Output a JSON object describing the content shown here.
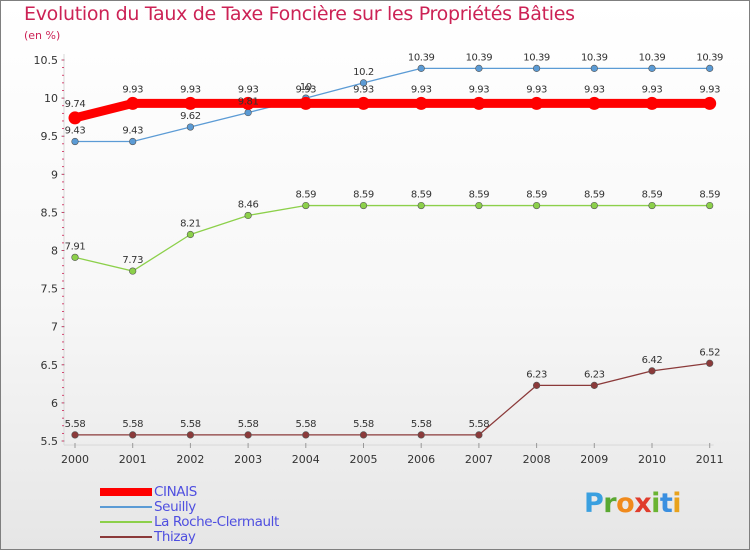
{
  "title": "Evolution du Taux de Taxe Foncière sur les Propriétés Bâties",
  "unit_label": "(en %)",
  "logo": {
    "letters": [
      "P",
      "r",
      "o",
      "x",
      "i",
      "t",
      "i"
    ],
    "colors": [
      "#3aa0e0",
      "#5aa832",
      "#f08a1c",
      "#e03c2c",
      "#6ab432",
      "#3a8fe0",
      "#e8a21c"
    ]
  },
  "chart_data": {
    "type": "line",
    "title": "Evolution du Taux de Taxe Foncière sur les Propriétés Bâties",
    "ylabel": "(en %)",
    "xlabel": "",
    "categories": [
      "2000",
      "2001",
      "2002",
      "2003",
      "2004",
      "2005",
      "2006",
      "2007",
      "2008",
      "2009",
      "2010",
      "2011"
    ],
    "ylim": [
      5.5,
      10.5
    ],
    "yticks": [
      "5.5",
      "6",
      "6.5",
      "7",
      "7.5",
      "8",
      "8.5",
      "9",
      "9.5",
      "10",
      "10.5"
    ],
    "grid": false,
    "legend_position": "bottom-left",
    "series": [
      {
        "name": "CINAIS",
        "color": "#ff0000",
        "emphasis": true,
        "values": [
          9.74,
          9.93,
          9.93,
          9.93,
          9.93,
          9.93,
          9.93,
          9.93,
          9.93,
          9.93,
          9.93,
          9.93
        ],
        "labels": [
          "9.74",
          "9.93",
          "9.93",
          "9.93",
          "9.93",
          "9.93",
          "9.93",
          "9.93",
          "9.93",
          "9.93",
          "9.93",
          "9.93"
        ]
      },
      {
        "name": "Seuilly",
        "color": "#5b9bd5",
        "emphasis": false,
        "values": [
          9.43,
          9.43,
          9.62,
          9.81,
          10.0,
          10.2,
          10.39,
          10.39,
          10.39,
          10.39,
          10.39,
          10.39
        ],
        "labels": [
          "9.43",
          "9.43",
          "9.62",
          "9.81",
          "10",
          "10.2",
          "10.39",
          "10.39",
          "10.39",
          "10.39",
          "10.39",
          "10.39"
        ]
      },
      {
        "name": "La Roche-Clermault",
        "color": "#8cd04a",
        "emphasis": false,
        "values": [
          7.91,
          7.73,
          8.21,
          8.46,
          8.59,
          8.59,
          8.59,
          8.59,
          8.59,
          8.59,
          8.59,
          8.59
        ],
        "labels": [
          "7.91",
          "7.73",
          "8.21",
          "8.46",
          "8.59",
          "8.59",
          "8.59",
          "8.59",
          "8.59",
          "8.59",
          "8.59",
          "8.59"
        ]
      },
      {
        "name": "Thizay",
        "color": "#8b3a3a",
        "emphasis": false,
        "values": [
          5.58,
          5.58,
          5.58,
          5.58,
          5.58,
          5.58,
          5.58,
          5.58,
          6.23,
          6.23,
          6.42,
          6.52
        ],
        "labels": [
          "5.58",
          "5.58",
          "5.58",
          "5.58",
          "5.58",
          "5.58",
          "5.58",
          "5.58",
          "6.23",
          "6.23",
          "6.42",
          "6.52"
        ]
      }
    ]
  }
}
